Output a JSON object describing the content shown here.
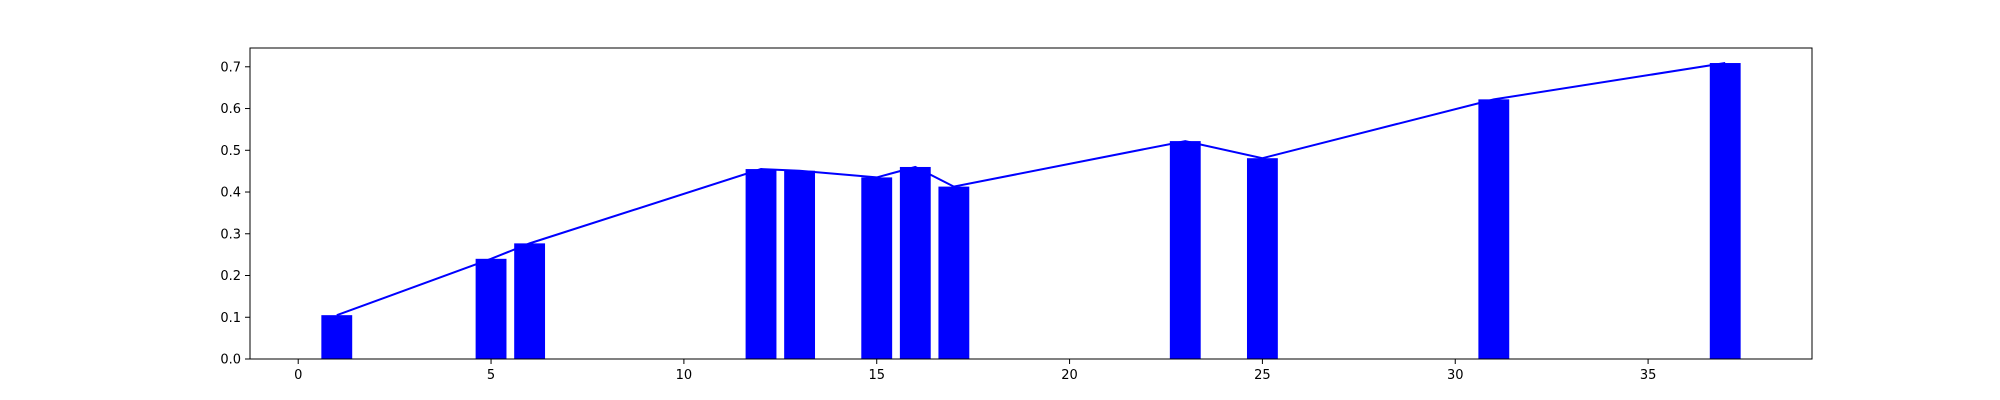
{
  "chart_data": {
    "type": "bar",
    "title": "",
    "xlabel": "",
    "ylabel": "",
    "xlim": [
      -1.25,
      39.25
    ],
    "ylim": [
      0,
      0.745
    ],
    "grid": false,
    "x_ticks": [
      0,
      5,
      10,
      15,
      20,
      25,
      30,
      35
    ],
    "x_tick_labels": [
      "0",
      "5",
      "10",
      "15",
      "20",
      "25",
      "30",
      "35"
    ],
    "y_ticks": [
      0.0,
      0.1,
      0.2,
      0.3,
      0.4,
      0.5,
      0.6,
      0.7
    ],
    "y_tick_labels": [
      "0.0",
      "0.1",
      "0.2",
      "0.3",
      "0.4",
      "0.5",
      "0.6",
      "0.7"
    ],
    "bar_width": 0.8,
    "x": [
      1,
      5,
      6,
      12,
      13,
      15,
      16,
      17,
      23,
      25,
      31,
      37
    ],
    "values": [
      0.105,
      0.24,
      0.277,
      0.455,
      0.451,
      0.435,
      0.46,
      0.413,
      0.522,
      0.481,
      0.622,
      0.709
    ],
    "bar_color": "#0000ff",
    "line_color": "#0000ff",
    "overlay": "line through bar tops"
  }
}
